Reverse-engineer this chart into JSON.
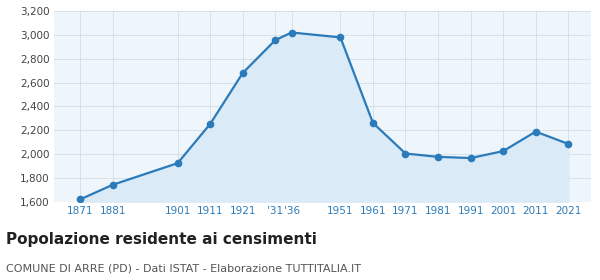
{
  "years": [
    1871,
    1881,
    1901,
    1911,
    1921,
    1931,
    1936,
    1951,
    1961,
    1971,
    1981,
    1991,
    2001,
    2011,
    2021
  ],
  "population": [
    1618,
    1741,
    1923,
    2253,
    2681,
    2957,
    3021,
    2980,
    2261,
    2004,
    1976,
    1966,
    2024,
    2188,
    2085
  ],
  "x_ticks": [
    1871,
    1881,
    1901,
    1911,
    1921,
    1931,
    1936,
    1951,
    1961,
    1971,
    1981,
    1991,
    2001,
    2011,
    2021
  ],
  "x_tick_labels": [
    "1871",
    "1881",
    "1901",
    "1911",
    "1921",
    "'31",
    "'36",
    "1951",
    "1961",
    "1971",
    "1981",
    "1991",
    "2001",
    "2011",
    "2021"
  ],
  "line_color": "#2b7bba",
  "fill_color": "#daeaf7",
  "marker_color": "#2b7bba",
  "grid_color": "#d0d8e0",
  "plot_bg_color": "#eef6fc",
  "background_color": "#ffffff",
  "title": "Popolazione residente ai censimenti",
  "subtitle": "COMUNE DI ARRE (PD) - Dati ISTAT - Elaborazione TUTTITALIA.IT",
  "title_fontsize": 11,
  "subtitle_fontsize": 8,
  "ylim": [
    1600,
    3200
  ],
  "yticks": [
    1600,
    1800,
    2000,
    2200,
    2400,
    2600,
    2800,
    3000,
    3200
  ]
}
